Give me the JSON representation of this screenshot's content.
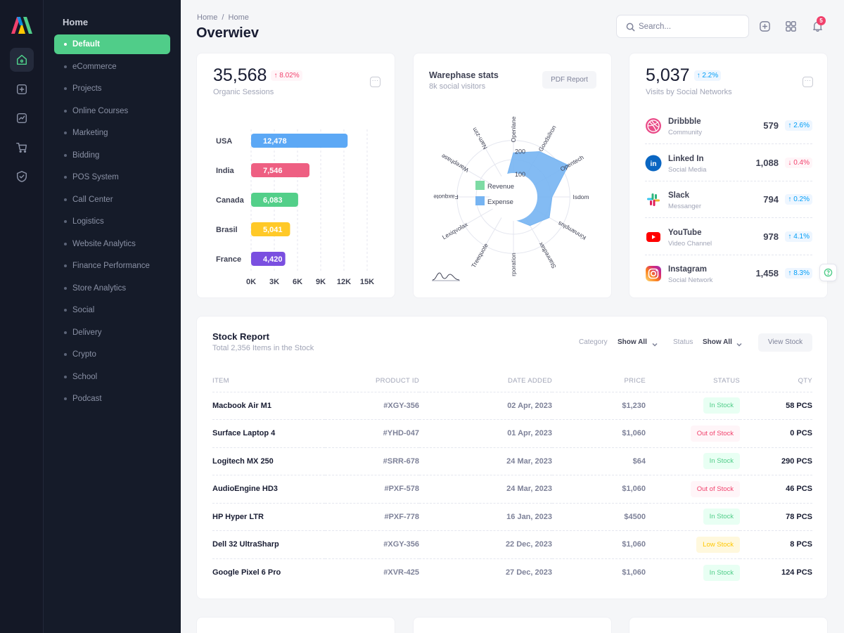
{
  "colors": {
    "accent": "#50cd89",
    "sidebar": "#151b29",
    "rail": "#141826",
    "primary": "#009ef7",
    "danger": "#f1416c",
    "warning": "#ffc700"
  },
  "menu": {
    "title": "Home",
    "items": [
      {
        "label": "Default",
        "active": true
      },
      {
        "label": "eCommerce"
      },
      {
        "label": "Projects"
      },
      {
        "label": "Online Courses"
      },
      {
        "label": "Marketing"
      },
      {
        "label": "Bidding"
      },
      {
        "label": "POS System"
      },
      {
        "label": "Call Center"
      },
      {
        "label": "Logistics"
      },
      {
        "label": "Website Analytics"
      },
      {
        "label": "Finance Performance"
      },
      {
        "label": "Store Analytics"
      },
      {
        "label": "Social"
      },
      {
        "label": "Delivery"
      },
      {
        "label": "Crypto"
      },
      {
        "label": "School"
      },
      {
        "label": "Podcast"
      }
    ]
  },
  "rail": {
    "icons": [
      "home-icon",
      "add-file-icon",
      "chart-icon",
      "cart-icon",
      "shield-icon"
    ]
  },
  "header": {
    "breadcrumb": [
      "Home",
      "/",
      "Home"
    ],
    "title": "Overwiev",
    "search_placeholder": "Search...",
    "notifications_count": "5"
  },
  "sessions": {
    "value": "35,568",
    "delta": "8.02%",
    "label": "Organic Sessions",
    "chart_data": {
      "type": "bar",
      "orientation": "horizontal",
      "categories": [
        "USA",
        "India",
        "Canada",
        "Brasil",
        "France"
      ],
      "values": [
        12478,
        7546,
        6083,
        5041,
        4420
      ],
      "value_labels": [
        "12,478",
        "7,546",
        "6,083",
        "5,041",
        "4,420"
      ],
      "colors": [
        "#5ca8f5",
        "#ee5f82",
        "#53cf89",
        "#ffc928",
        "#7a4fe0"
      ],
      "xlim": [
        0,
        15000
      ],
      "xticks": [
        "0K",
        "3K",
        "6K",
        "9K",
        "12K",
        "15K"
      ],
      "grid": true
    }
  },
  "warehouse": {
    "title": "Warephase stats",
    "subtitle": "8k social visitors",
    "button": "PDF Report",
    "chart_data": {
      "type": "radar",
      "categories": [
        "Openlane",
        "Goodsilron",
        "Opentech",
        "Isdom",
        "Kinnamplus",
        "Stanredtax",
        "Yearin",
        "Treequote",
        "Lexiqvolax",
        "Faxquote",
        "Warephase",
        "Nam-zim"
      ],
      "category_labels": [
        "Openlane",
        "Goodsilron",
        "Opentech",
        "Isdom",
        "Kinnamplus",
        "Stanredtax",
        "rporation",
        "Treequote",
        "Lexiqvolax",
        "Faxquote",
        "Warephase",
        "Nam-zim"
      ],
      "rticks": [
        100,
        200
      ],
      "rlim": [
        0,
        250
      ],
      "series": [
        {
          "name": "Revenue",
          "color": "#7ddba4",
          "values": [
            70,
            65,
            80,
            60,
            75,
            70,
            60,
            55,
            45,
            40,
            55,
            75
          ]
        },
        {
          "name": "Expense",
          "color": "#76b4f2",
          "values": [
            160,
            190,
            230,
            140,
            150,
            120,
            80,
            50,
            45,
            40,
            45,
            60
          ]
        }
      ]
    }
  },
  "social": {
    "value": "5,037",
    "delta": "2.2%",
    "label": "Visits by Social Networks",
    "items": [
      {
        "icon": "dribbble-icon",
        "name": "Dribbble",
        "sub": "Community",
        "value": "579",
        "delta": "2.6%",
        "dir": "up"
      },
      {
        "icon": "linkedin-icon",
        "name": "Linked In",
        "sub": "Social Media",
        "value": "1,088",
        "delta": "0.4%",
        "dir": "down"
      },
      {
        "icon": "slack-icon",
        "name": "Slack",
        "sub": "Messanger",
        "value": "794",
        "delta": "0.2%",
        "dir": "up"
      },
      {
        "icon": "youtube-icon",
        "name": "YouTube",
        "sub": "Video Channel",
        "value": "978",
        "delta": "4.1%",
        "dir": "up"
      },
      {
        "icon": "instagram-icon",
        "name": "Instagram",
        "sub": "Social Network",
        "value": "1,458",
        "delta": "8.3%",
        "dir": "up"
      }
    ]
  },
  "stock": {
    "title": "Stock Report",
    "subtitle": "Total 2,356 Items in the Stock",
    "category_label": "Category",
    "category_value": "Show All",
    "status_label": "Status",
    "status_value": "Show All",
    "button": "View Stock",
    "columns": [
      "ITEM",
      "PRODUCT ID",
      "DATE ADDED",
      "PRICE",
      "STATUS",
      "QTY"
    ],
    "rows": [
      {
        "item": "Macbook Air M1",
        "pid": "#XGY-356",
        "date": "02 Apr, 2023",
        "price": "$1,230",
        "status": "In Stock",
        "kind": "in",
        "qty": "58 PCS"
      },
      {
        "item": "Surface Laptop 4",
        "pid": "#YHD-047",
        "date": "01 Apr, 2023",
        "price": "$1,060",
        "status": "Out of Stock",
        "kind": "out",
        "qty": "0 PCS"
      },
      {
        "item": "Logitech MX 250",
        "pid": "#SRR-678",
        "date": "24 Mar, 2023",
        "price": "$64",
        "status": "In Stock",
        "kind": "in",
        "qty": "290 PCS"
      },
      {
        "item": "AudioEngine HD3",
        "pid": "#PXF-578",
        "date": "24 Mar, 2023",
        "price": "$1,060",
        "status": "Out of Stock",
        "kind": "out",
        "qty": "46 PCS"
      },
      {
        "item": "HP Hyper LTR",
        "pid": "#PXF-778",
        "date": "16 Jan, 2023",
        "price": "$4500",
        "status": "In Stock",
        "kind": "in",
        "qty": "78 PCS"
      },
      {
        "item": "Dell 32 UltraSharp",
        "pid": "#XGY-356",
        "date": "22 Dec, 2023",
        "price": "$1,060",
        "status": "Low Stock",
        "kind": "low",
        "qty": "8 PCS"
      },
      {
        "item": "Google Pixel 6 Pro",
        "pid": "#XVR-425",
        "date": "27 Dec, 2023",
        "price": "$1,060",
        "status": "In Stock",
        "kind": "in",
        "qty": "124 PCS"
      }
    ]
  }
}
